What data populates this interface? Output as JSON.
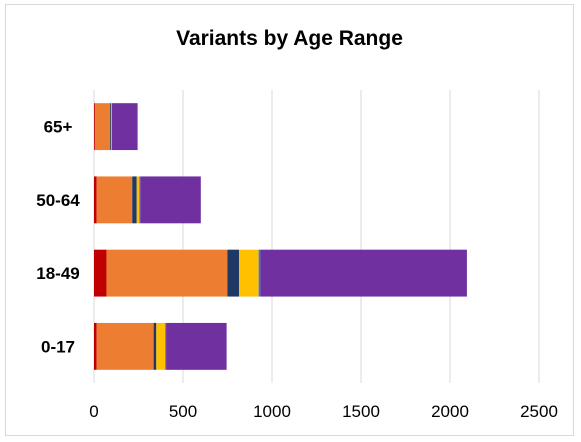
{
  "chart_data": {
    "type": "bar",
    "orientation": "horizontal",
    "stacked": true,
    "title": "Variants by Age Range",
    "categories": [
      "0-17",
      "18-49",
      "50-64",
      "65+"
    ],
    "series": [
      {
        "color": "#c00000",
        "values": [
          15,
          70,
          15,
          5
        ]
      },
      {
        "color": "#ed7d31",
        "values": [
          320,
          680,
          200,
          85
        ]
      },
      {
        "color": "#203864",
        "values": [
          15,
          65,
          25,
          5
        ]
      },
      {
        "color": "#ffc000",
        "values": [
          50,
          110,
          15,
          5
        ]
      },
      {
        "color": "#4472c4",
        "values": [
          5,
          10,
          5,
          0
        ]
      },
      {
        "color": "#7030a0",
        "values": [
          340,
          1160,
          340,
          145
        ]
      }
    ],
    "xlim": [
      0,
      2500
    ],
    "xticks": [
      "0",
      "500",
      "1000",
      "1500",
      "2000",
      "2500"
    ],
    "grid": true
  }
}
